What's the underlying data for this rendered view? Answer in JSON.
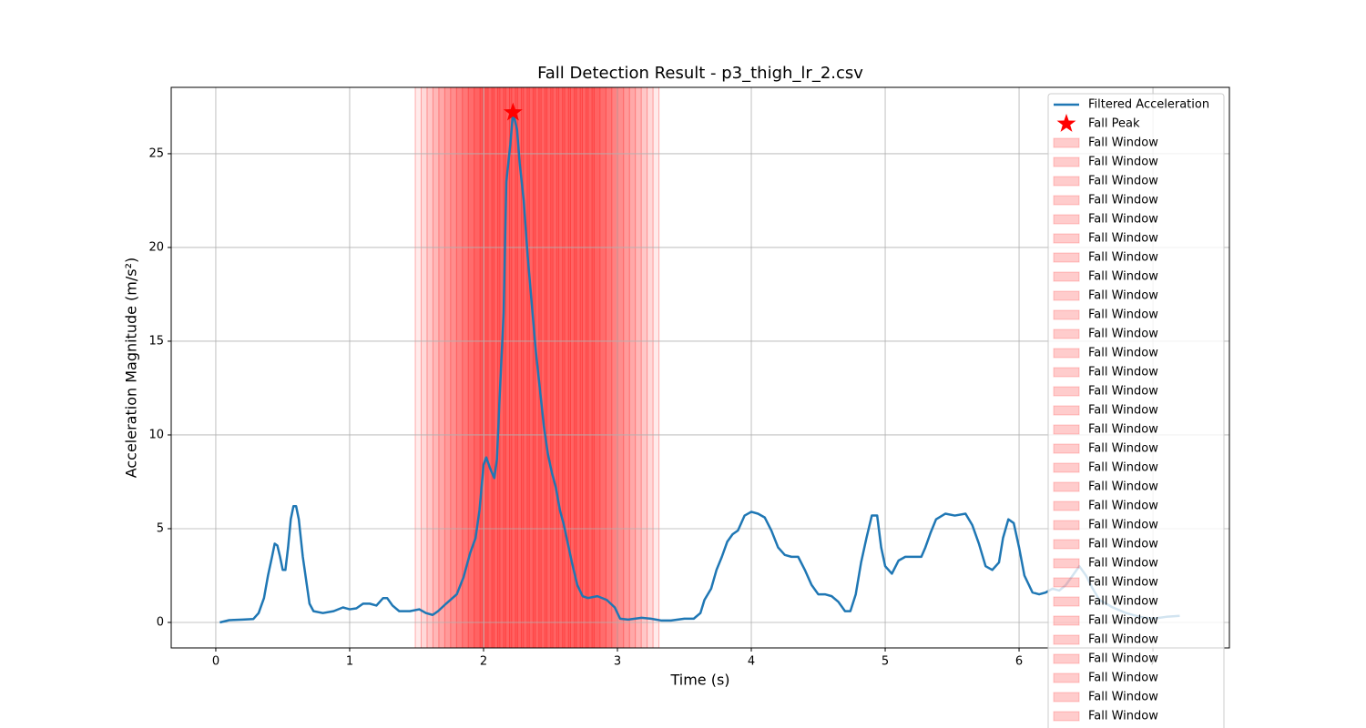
{
  "chart_data": {
    "type": "line",
    "title": "Fall Detection Result - p3_thigh_lr_2.csv",
    "x_label": "Time (s)",
    "y_label": "Acceleration Magnitude (m/s²)",
    "xlim": [
      -0.333,
      7.571
    ],
    "ylim": [
      -1.36,
      28.54
    ],
    "xticks": [
      0,
      1,
      2,
      3,
      4,
      5,
      6,
      7
    ],
    "yticks": [
      0,
      5,
      10,
      15,
      20,
      25
    ],
    "grid": true,
    "legend": "upper right",
    "series": [
      {
        "name": "Filtered Acceleration",
        "color": "#1f77b4",
        "x": [
          0.03,
          0.1,
          0.2,
          0.28,
          0.32,
          0.36,
          0.39,
          0.42,
          0.44,
          0.46,
          0.48,
          0.5,
          0.52,
          0.54,
          0.56,
          0.58,
          0.6,
          0.62,
          0.65,
          0.68,
          0.7,
          0.73,
          0.8,
          0.88,
          0.95,
          1.0,
          1.05,
          1.1,
          1.15,
          1.2,
          1.25,
          1.28,
          1.32,
          1.37,
          1.45,
          1.52,
          1.57,
          1.62,
          1.66,
          1.72,
          1.8,
          1.85,
          1.9,
          1.94,
          1.97,
          2.0,
          2.02,
          2.05,
          2.08,
          2.1,
          2.12,
          2.15,
          2.17,
          2.2,
          2.22,
          2.25,
          2.27,
          2.3,
          2.33,
          2.36,
          2.39,
          2.42,
          2.45,
          2.48,
          2.51,
          2.54,
          2.57,
          2.6,
          2.63,
          2.66,
          2.7,
          2.74,
          2.78,
          2.85,
          2.92,
          2.98,
          3.02,
          3.08,
          3.18,
          3.25,
          3.33,
          3.4,
          3.5,
          3.57,
          3.62,
          3.65,
          3.7,
          3.74,
          3.78,
          3.82,
          3.86,
          3.9,
          3.95,
          4.0,
          4.05,
          4.1,
          4.15,
          4.2,
          4.25,
          4.3,
          4.35,
          4.4,
          4.45,
          4.5,
          4.55,
          4.6,
          4.65,
          4.7,
          4.74,
          4.78,
          4.82,
          4.86,
          4.9,
          4.94,
          4.97,
          5.0,
          5.05,
          5.1,
          5.15,
          5.2,
          5.27,
          5.3,
          5.34,
          5.38,
          5.45,
          5.52,
          5.6,
          5.65,
          5.7,
          5.75,
          5.8,
          5.85,
          5.88,
          5.92,
          5.96,
          6.0,
          6.04,
          6.1,
          6.15,
          6.2,
          6.25,
          6.3,
          6.35,
          6.4,
          6.45,
          6.5,
          6.55,
          6.6,
          6.7,
          6.8,
          6.9,
          7.0,
          7.1,
          7.2
        ],
        "values": [
          0.0,
          0.12,
          0.15,
          0.18,
          0.5,
          1.3,
          2.5,
          3.5,
          4.2,
          4.1,
          3.5,
          2.8,
          2.8,
          4.0,
          5.5,
          6.2,
          6.2,
          5.5,
          3.5,
          2.0,
          1.0,
          0.6,
          0.5,
          0.6,
          0.8,
          0.7,
          0.75,
          1.0,
          1.0,
          0.9,
          1.3,
          1.3,
          0.9,
          0.6,
          0.6,
          0.7,
          0.5,
          0.4,
          0.6,
          1.0,
          1.5,
          2.4,
          3.7,
          4.5,
          6.0,
          8.4,
          8.8,
          8.2,
          7.7,
          8.7,
          12,
          16.5,
          23.5,
          25.5,
          27.2,
          26.3,
          24.5,
          22.5,
          19.5,
          17.0,
          14.5,
          12.5,
          10.5,
          9.0,
          8.0,
          7.2,
          6.0,
          5.2,
          4.2,
          3.2,
          2.0,
          1.4,
          1.3,
          1.4,
          1.2,
          0.8,
          0.2,
          0.15,
          0.25,
          0.2,
          0.1,
          0.1,
          0.2,
          0.2,
          0.5,
          1.2,
          1.8,
          2.8,
          3.5,
          4.3,
          4.7,
          4.9,
          5.7,
          5.9,
          5.8,
          5.6,
          4.9,
          4.0,
          3.6,
          3.5,
          3.5,
          2.8,
          2.0,
          1.5,
          1.5,
          1.4,
          1.1,
          0.6,
          0.6,
          1.5,
          3.2,
          4.5,
          5.7,
          5.7,
          4.0,
          3.0,
          2.6,
          3.3,
          3.5,
          3.5,
          3.5,
          4.0,
          4.8,
          5.5,
          5.8,
          5.7,
          5.8,
          5.2,
          4.2,
          3.0,
          2.8,
          3.2,
          4.5,
          5.5,
          5.3,
          4.0,
          2.5,
          1.6,
          1.5,
          1.6,
          1.8,
          1.7,
          2.0,
          2.5,
          3.0,
          2.5,
          1.8,
          1.2,
          0.8,
          0.5,
          0.3,
          0.2,
          0.3,
          0.35
        ]
      }
    ],
    "peak": {
      "name": "Fall Peak",
      "color": "#ff0000",
      "x": 2.22,
      "value": 27.2
    },
    "window_color": "#ff0000",
    "windows": [
      {
        "name": "Fall Window",
        "range": [
          1.49,
          1.99
        ]
      },
      {
        "name": "Fall Window",
        "range": [
          1.534,
          2.034
        ]
      },
      {
        "name": "Fall Window",
        "range": [
          1.578,
          2.078
        ]
      },
      {
        "name": "Fall Window",
        "range": [
          1.622,
          2.122
        ]
      },
      {
        "name": "Fall Window",
        "range": [
          1.666,
          2.166
        ]
      },
      {
        "name": "Fall Window",
        "range": [
          1.71,
          2.21
        ]
      },
      {
        "name": "Fall Window",
        "range": [
          1.754,
          2.254
        ]
      },
      {
        "name": "Fall Window",
        "range": [
          1.798,
          2.298
        ]
      },
      {
        "name": "Fall Window",
        "range": [
          1.842,
          2.342
        ]
      },
      {
        "name": "Fall Window",
        "range": [
          1.886,
          2.386
        ]
      },
      {
        "name": "Fall Window",
        "range": [
          1.93,
          2.43
        ]
      },
      {
        "name": "Fall Window",
        "range": [
          1.974,
          2.474
        ]
      },
      {
        "name": "Fall Window",
        "range": [
          2.018,
          2.518
        ]
      },
      {
        "name": "Fall Window",
        "range": [
          2.062,
          2.562
        ]
      },
      {
        "name": "Fall Window",
        "range": [
          2.106,
          2.606
        ]
      },
      {
        "name": "Fall Window",
        "range": [
          2.15,
          2.65
        ]
      },
      {
        "name": "Fall Window",
        "range": [
          2.194,
          2.694
        ]
      },
      {
        "name": "Fall Window",
        "range": [
          2.238,
          2.738
        ]
      },
      {
        "name": "Fall Window",
        "range": [
          2.282,
          2.782
        ]
      },
      {
        "name": "Fall Window",
        "range": [
          2.326,
          2.826
        ]
      },
      {
        "name": "Fall Window",
        "range": [
          2.37,
          2.87
        ]
      },
      {
        "name": "Fall Window",
        "range": [
          2.414,
          2.914
        ]
      },
      {
        "name": "Fall Window",
        "range": [
          2.458,
          2.958
        ]
      },
      {
        "name": "Fall Window",
        "range": [
          2.502,
          3.002
        ]
      },
      {
        "name": "Fall Window",
        "range": [
          2.546,
          3.046
        ]
      },
      {
        "name": "Fall Window",
        "range": [
          2.59,
          3.09
        ]
      },
      {
        "name": "Fall Window",
        "range": [
          2.634,
          3.134
        ]
      },
      {
        "name": "Fall Window",
        "range": [
          2.678,
          3.178
        ]
      },
      {
        "name": "Fall Window",
        "range": [
          2.722,
          3.222
        ]
      },
      {
        "name": "Fall Window",
        "range": [
          2.766,
          3.266
        ]
      },
      {
        "name": "Fall Window",
        "range": [
          2.81,
          3.31
        ]
      }
    ]
  }
}
